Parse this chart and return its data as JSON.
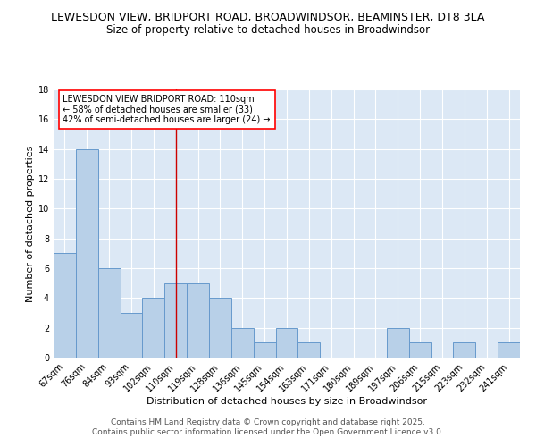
{
  "title": "LEWESDON VIEW, BRIDPORT ROAD, BROADWINDSOR, BEAMINSTER, DT8 3LA",
  "subtitle": "Size of property relative to detached houses in Broadwindsor",
  "xlabel": "Distribution of detached houses by size in Broadwindsor",
  "ylabel": "Number of detached properties",
  "categories": [
    "67sqm",
    "76sqm",
    "84sqm",
    "93sqm",
    "102sqm",
    "110sqm",
    "119sqm",
    "128sqm",
    "136sqm",
    "145sqm",
    "154sqm",
    "163sqm",
    "171sqm",
    "180sqm",
    "189sqm",
    "197sqm",
    "206sqm",
    "215sqm",
    "223sqm",
    "232sqm",
    "241sqm"
  ],
  "values": [
    7,
    14,
    6,
    3,
    4,
    5,
    5,
    4,
    2,
    1,
    2,
    1,
    0,
    0,
    0,
    2,
    1,
    0,
    1,
    0,
    1
  ],
  "bar_color": "#b8d0e8",
  "bar_edge_color": "#6699cc",
  "highlight_index": 5,
  "highlight_line_color": "#cc0000",
  "ylim": [
    0,
    18
  ],
  "yticks": [
    0,
    2,
    4,
    6,
    8,
    10,
    12,
    14,
    16,
    18
  ],
  "background_color": "#dce8f5",
  "grid_color": "#ffffff",
  "annotation_text": "LEWESDON VIEW BRIDPORT ROAD: 110sqm\n← 58% of detached houses are smaller (33)\n42% of semi-detached houses are larger (24) →",
  "footer_line1": "Contains HM Land Registry data © Crown copyright and database right 2025.",
  "footer_line2": "Contains public sector information licensed under the Open Government Licence v3.0.",
  "title_fontsize": 9,
  "subtitle_fontsize": 8.5,
  "axis_label_fontsize": 8,
  "tick_fontsize": 7,
  "annotation_fontsize": 7,
  "footer_fontsize": 6.5
}
